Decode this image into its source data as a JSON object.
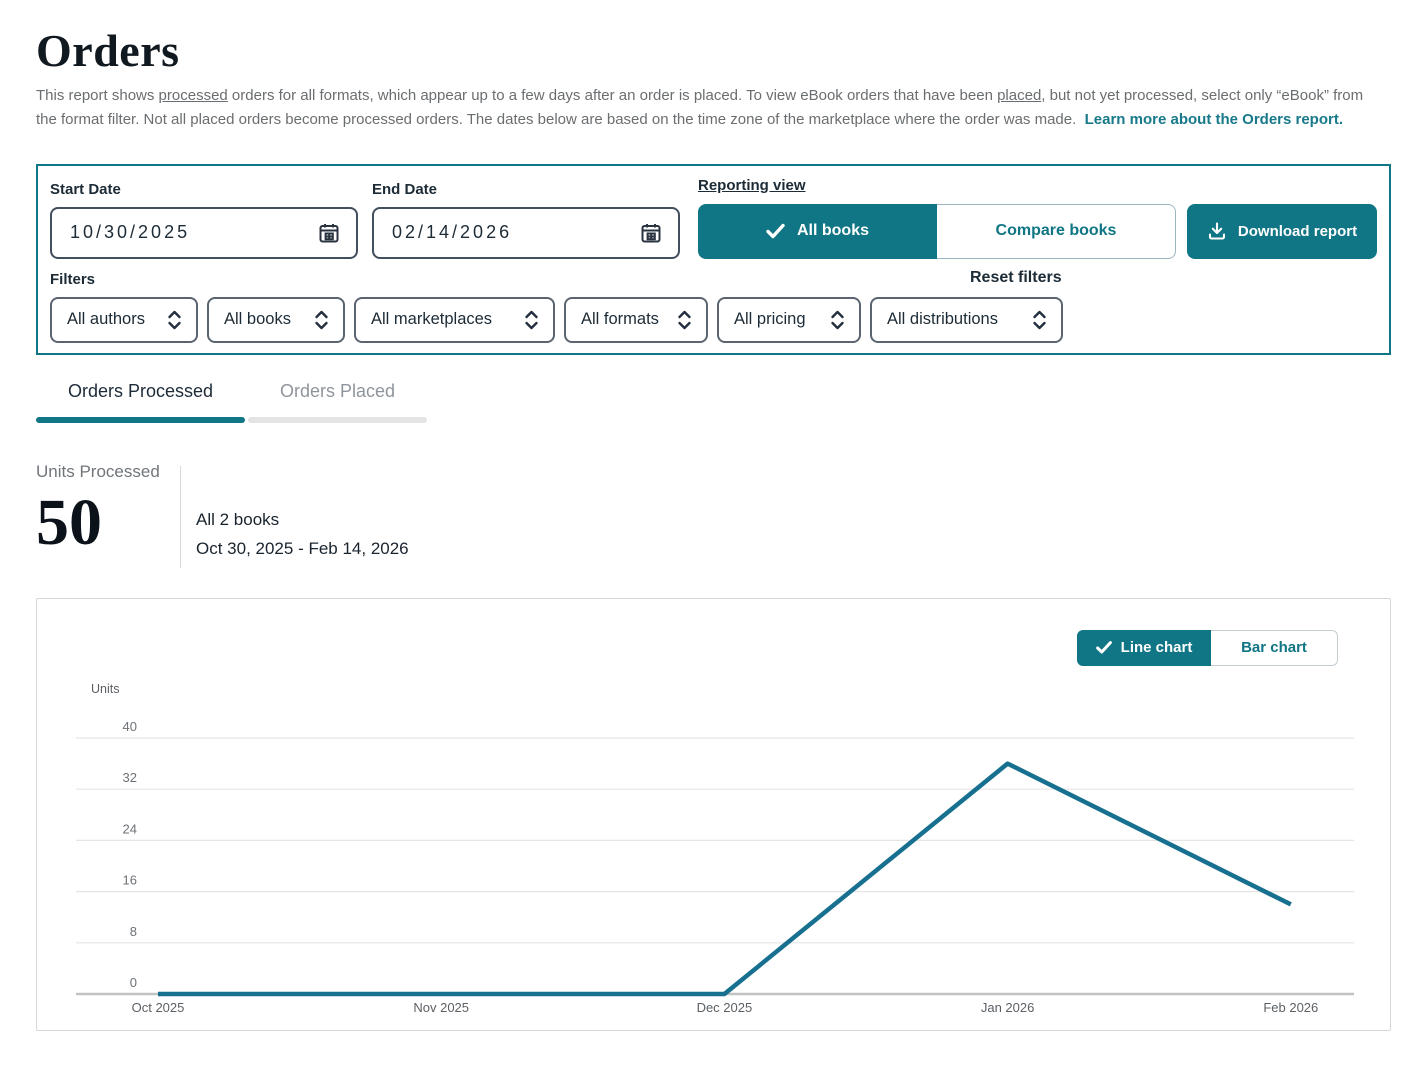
{
  "page": {
    "title": "Orders"
  },
  "description": {
    "part1": "This report shows ",
    "underlined_processed": "processed",
    "part2": " orders for all formats, which appear up to a few days after an order is placed. To view eBook orders that have been ",
    "underlined_placed": "placed",
    "part3": ", but not yet processed, select only “eBook” from the format filter. Not all placed orders become processed orders. The dates below are based on the time zone of the marketplace where the order was made.  ",
    "link_text": "Learn more about the Orders report."
  },
  "filters_panel": {
    "start_date": {
      "label": "Start Date",
      "value": "10/30/2025"
    },
    "end_date": {
      "label": "End Date",
      "value": "02/14/2026"
    },
    "reporting_view": {
      "label": "Reporting view",
      "all_books_label": "All books",
      "compare_books_label": "Compare books"
    },
    "download_label": "Download report",
    "filters_label": "Filters",
    "reset_label": "Reset filters",
    "dropdowns": [
      {
        "label": "All authors"
      },
      {
        "label": "All books"
      },
      {
        "label": "All marketplaces"
      },
      {
        "label": "All formats"
      },
      {
        "label": "All pricing"
      },
      {
        "label": "All distributions"
      }
    ]
  },
  "tabs": [
    {
      "label": "Orders Processed",
      "active": true
    },
    {
      "label": "Orders Placed",
      "active": false
    }
  ],
  "kpi": {
    "label": "Units Processed",
    "value": "50",
    "books_line": "All 2 books",
    "range_line": "Oct 30, 2025 - Feb 14, 2026"
  },
  "chart_toggle": {
    "line_label": "Line chart",
    "bar_label": "Bar chart"
  },
  "chart_data": {
    "type": "line",
    "categories": [
      "Oct 2025",
      "Nov 2025",
      "Dec 2025",
      "Jan 2026",
      "Feb 2026"
    ],
    "values": [
      0,
      0,
      0,
      36,
      14
    ],
    "title": "",
    "xlabel": "",
    "ylabel": "Units",
    "yticks": [
      0,
      8,
      16,
      24,
      32,
      40
    ],
    "ylim": [
      0,
      44
    ],
    "grid": true,
    "legend_position": "none",
    "line_color": "#17708f"
  },
  "colors": {
    "accent_teal": "#107584",
    "link_teal": "#17798a",
    "line_stroke": "#17708f",
    "active_tab_bar": "#107584",
    "gridline": "#e5e5e5",
    "axis_line": "#c2c2c2"
  }
}
